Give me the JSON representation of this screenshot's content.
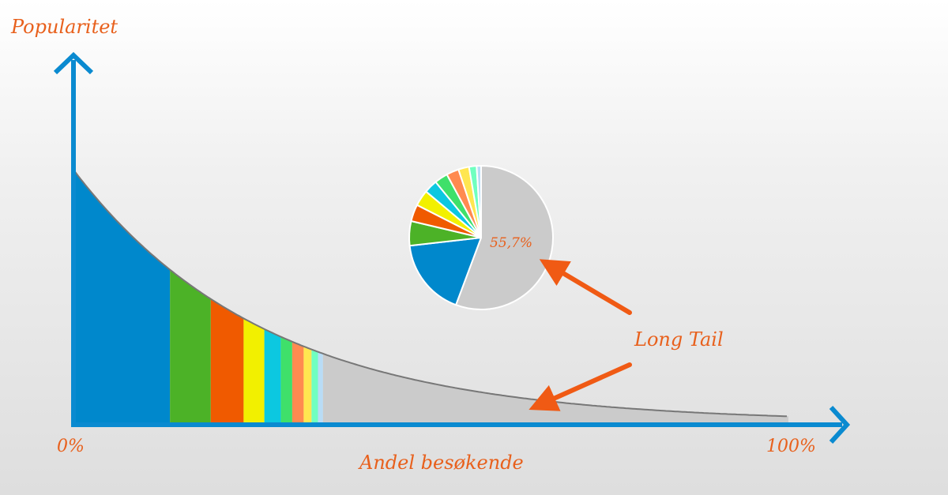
{
  "y_axis_label": "Popularitet",
  "x_axis_label": "Andel besøkende",
  "x_min_label": "0%",
  "x_max_label": "100%",
  "annotation": "Long Tail",
  "pie_percent_label": "55,7%",
  "colors": {
    "axis": "#0a8ad0",
    "text": "#e8601c",
    "arrow": "#f05a14",
    "curve": "#777777",
    "tail": "#cbcbcb"
  },
  "chart_data": [
    {
      "type": "area",
      "title": "",
      "xlabel": "Andel besøkende",
      "ylabel": "Popularitet",
      "x_range": [
        0,
        100
      ],
      "x_tick_labels": [
        "0%",
        "100%"
      ],
      "curve": "decreasing exponential (long tail)",
      "segments": [
        {
          "x_start": 0,
          "x_end": 13.5,
          "color": "#0088cc"
        },
        {
          "x_start": 13.5,
          "x_end": 19.2,
          "color": "#4cb227"
        },
        {
          "x_start": 19.2,
          "x_end": 23.8,
          "color": "#f05a00"
        },
        {
          "x_start": 23.8,
          "x_end": 26.7,
          "color": "#f2f000"
        },
        {
          "x_start": 26.7,
          "x_end": 29.0,
          "color": "#0cc8e0"
        },
        {
          "x_start": 29.0,
          "x_end": 30.6,
          "color": "#3fe06a"
        },
        {
          "x_start": 30.6,
          "x_end": 32.2,
          "color": "#ff8a50"
        },
        {
          "x_start": 32.2,
          "x_end": 33.3,
          "color": "#ffe650"
        },
        {
          "x_start": 33.3,
          "x_end": 34.2,
          "color": "#70ffc0"
        },
        {
          "x_start": 34.2,
          "x_end": 34.9,
          "color": "#b8dcf6"
        },
        {
          "x_start": 34.9,
          "x_end": 100,
          "color": "#cbcbcb",
          "name": "Long Tail"
        }
      ]
    },
    {
      "type": "pie",
      "title": "",
      "slices": [
        {
          "value": 55.7,
          "color": "#cbcbcb",
          "label": "55,7%"
        },
        {
          "value": 17.5,
          "color": "#0088cc"
        },
        {
          "value": 5.5,
          "color": "#4cb227"
        },
        {
          "value": 3.8,
          "color": "#f05a00"
        },
        {
          "value": 3.6,
          "color": "#f2f000"
        },
        {
          "value": 3.0,
          "color": "#0cc8e0"
        },
        {
          "value": 3.0,
          "color": "#3fe06a"
        },
        {
          "value": 2.8,
          "color": "#ff8a50"
        },
        {
          "value": 2.4,
          "color": "#ffe650"
        },
        {
          "value": 1.7,
          "color": "#70ffc0"
        },
        {
          "value": 1.0,
          "color": "#b8dcf6"
        }
      ]
    }
  ]
}
